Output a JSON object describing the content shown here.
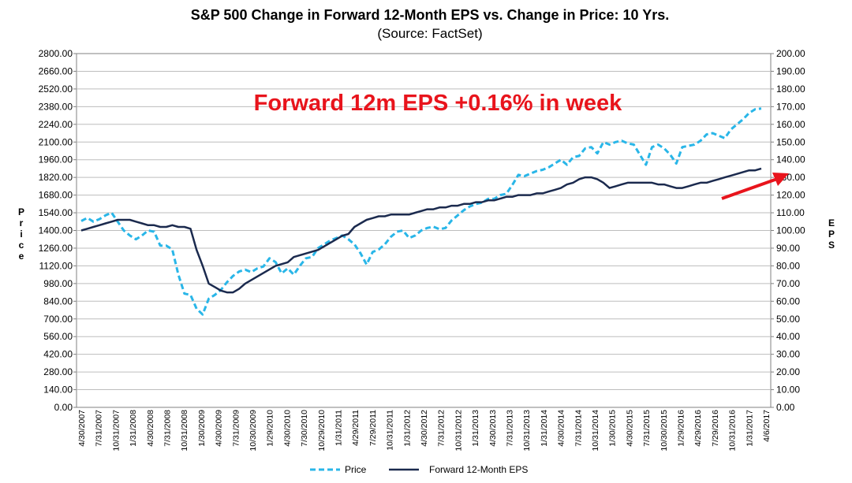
{
  "chart_data": {
    "type": "line",
    "title": "S&P 500 Change in Forward 12-Month EPS vs. Change in Price: 10 Yrs.",
    "subtitle": "(Source: FactSet)",
    "ylabel_left": "Price",
    "ylabel_right": "EPS",
    "ylim_left": [
      0,
      2800
    ],
    "ylim_right": [
      0,
      200
    ],
    "yticks_left": [
      "0.00",
      "140.00",
      "280.00",
      "420.00",
      "560.00",
      "700.00",
      "840.00",
      "980.00",
      "1120.00",
      "1260.00",
      "1400.00",
      "1540.00",
      "1680.00",
      "1820.00",
      "1960.00",
      "2100.00",
      "2240.00",
      "2380.00",
      "2520.00",
      "2660.00",
      "2800.00"
    ],
    "yticks_right": [
      "0.00",
      "10.00",
      "20.00",
      "30.00",
      "40.00",
      "50.00",
      "60.00",
      "70.00",
      "80.00",
      "90.00",
      "100.00",
      "110.00",
      "120.00",
      "130.00",
      "140.00",
      "150.00",
      "160.00",
      "170.00",
      "180.00",
      "190.00",
      "200.00"
    ],
    "xticks": [
      "4/30/2007",
      "7/31/2007",
      "10/31/2007",
      "1/31/2008",
      "4/30/2008",
      "7/31/2008",
      "10/31/2008",
      "1/30/2009",
      "4/30/2009",
      "7/31/2009",
      "10/30/2009",
      "1/29/2010",
      "4/30/2010",
      "7/30/2010",
      "10/29/2010",
      "1/31/2011",
      "4/29/2011",
      "7/29/2011",
      "10/31/2011",
      "1/31/2012",
      "4/30/2012",
      "7/31/2012",
      "10/31/2012",
      "1/31/2013",
      "4/30/2013",
      "7/31/2013",
      "10/31/2013",
      "1/31/2014",
      "4/30/2014",
      "7/31/2014",
      "10/31/2014",
      "1/30/2015",
      "4/30/2015",
      "7/31/2015",
      "10/30/2015",
      "1/29/2016",
      "4/29/2016",
      "7/29/2016",
      "10/31/2016",
      "1/31/2017",
      "4/6/2017"
    ],
    "grid": true,
    "legend_position": "bottom",
    "annotation": "Forward 12m EPS +0.16% in week",
    "series": [
      {
        "name": "Price",
        "axis": "left",
        "color": "#29b6e8",
        "style": "dashed",
        "values": [
          1475,
          1500,
          1470,
          1490,
          1520,
          1540,
          1470,
          1400,
          1360,
          1330,
          1360,
          1400,
          1390,
          1280,
          1280,
          1250,
          1050,
          900,
          890,
          780,
          735,
          860,
          890,
          930,
          990,
          1040,
          1075,
          1090,
          1070,
          1100,
          1115,
          1180,
          1150,
          1060,
          1100,
          1050,
          1120,
          1180,
          1190,
          1260,
          1290,
          1320,
          1340,
          1360,
          1330,
          1290,
          1220,
          1130,
          1230,
          1250,
          1290,
          1350,
          1390,
          1400,
          1340,
          1360,
          1400,
          1420,
          1430,
          1410,
          1420,
          1480,
          1520,
          1560,
          1590,
          1610,
          1620,
          1650,
          1650,
          1680,
          1690,
          1760,
          1840,
          1830,
          1850,
          1870,
          1880,
          1900,
          1930,
          1960,
          1920,
          1980,
          1990,
          2050,
          2060,
          2010,
          2100,
          2080,
          2100,
          2110,
          2090,
          2080,
          2000,
          1920,
          2060,
          2080,
          2050,
          2000,
          1930,
          2060,
          2070,
          2080,
          2110,
          2160,
          2170,
          2150,
          2130,
          2200,
          2240,
          2280,
          2330,
          2360,
          2365
        ]
      },
      {
        "name": "Forward 12-Month EPS",
        "axis": "right",
        "color": "#1b2a4e",
        "style": "solid",
        "values": [
          100,
          101,
          102,
          103,
          104,
          105,
          106,
          106,
          106,
          105,
          104,
          103,
          103,
          102,
          102,
          103,
          102,
          102,
          101,
          89,
          80,
          70,
          68,
          66,
          65,
          65,
          67,
          70,
          72,
          74,
          76,
          78,
          80,
          81,
          82,
          85,
          86,
          87,
          88,
          89,
          91,
          93,
          95,
          97,
          98,
          102,
          104,
          106,
          107,
          108,
          108,
          109,
          109,
          109,
          109,
          110,
          111,
          112,
          112,
          113,
          113,
          114,
          114,
          115,
          115,
          116,
          116,
          117,
          117,
          118,
          119,
          119,
          120,
          120,
          120,
          121,
          121,
          122,
          123,
          124,
          126,
          127,
          129,
          130,
          130,
          129,
          127,
          124,
          125,
          126,
          127,
          127,
          127,
          127,
          127,
          126,
          126,
          125,
          124,
          124,
          125,
          126,
          127,
          127,
          128,
          129,
          130,
          131,
          132,
          133,
          134,
          134,
          135
        ]
      }
    ]
  }
}
